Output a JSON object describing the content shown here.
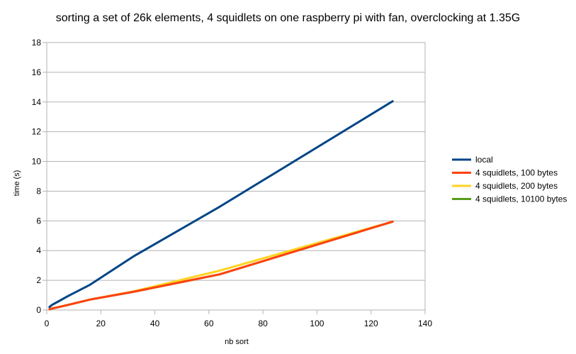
{
  "chart_data": {
    "type": "line",
    "title": "sorting a set of 26k elements, 4 squidlets on one raspberry pi with fan, overclocking at 1.35G",
    "xlabel": "nb sort",
    "ylabel": "time (s)",
    "xlim": [
      0,
      140
    ],
    "ylim": [
      0,
      18
    ],
    "xticks": [
      0,
      20,
      40,
      60,
      80,
      100,
      120,
      140
    ],
    "yticks": [
      0,
      2,
      4,
      6,
      8,
      10,
      12,
      14,
      16,
      18
    ],
    "grid": "horizontal",
    "legend_position": "right",
    "series": [
      {
        "name": "local",
        "color": "#004586",
        "x": [
          1,
          2,
          4,
          8,
          16,
          32,
          64,
          128
        ],
        "y": [
          0.2,
          0.35,
          0.55,
          0.95,
          1.7,
          3.6,
          6.95,
          14.05
        ]
      },
      {
        "name": "4 squidlets, 200 bytes",
        "color": "#ffd320",
        "x": [
          1,
          2,
          4,
          8,
          16,
          32,
          64,
          128
        ],
        "y": [
          0.05,
          0.1,
          0.18,
          0.35,
          0.7,
          1.25,
          2.65,
          5.95
        ]
      },
      {
        "name": "4 squidlets, 10100 bytes",
        "color": "#579d1c",
        "x": [
          1,
          2,
          4,
          8,
          16,
          32,
          64,
          128
        ],
        "y": [
          0.05,
          0.1,
          0.18,
          0.35,
          0.7,
          1.22,
          2.4,
          5.95
        ]
      },
      {
        "name": "4 squidlets, 100 bytes",
        "color": "#ff420e",
        "x": [
          1,
          2,
          4,
          8,
          16,
          32,
          64,
          128
        ],
        "y": [
          0.05,
          0.1,
          0.18,
          0.35,
          0.7,
          1.22,
          2.4,
          5.95
        ]
      }
    ],
    "legend_order": [
      "local",
      "4 squidlets, 100 bytes",
      "4 squidlets, 200 bytes",
      "4 squidlets, 10100 bytes"
    ]
  }
}
